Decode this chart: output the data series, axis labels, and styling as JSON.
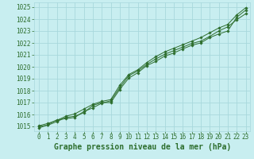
{
  "xlabel": "Graphe pression niveau de la mer (hPa)",
  "bg_color": "#c8eef0",
  "grid_color": "#a8d8dc",
  "line_color": "#2d6e2d",
  "x_ticks": [
    0,
    1,
    2,
    3,
    4,
    5,
    6,
    7,
    8,
    9,
    10,
    11,
    12,
    13,
    14,
    15,
    16,
    17,
    18,
    19,
    20,
    21,
    22,
    23
  ],
  "y_ticks": [
    1015,
    1016,
    1017,
    1018,
    1019,
    1020,
    1021,
    1022,
    1023,
    1024,
    1025
  ],
  "ylim": [
    1014.6,
    1025.4
  ],
  "xlim": [
    -0.5,
    23.5
  ],
  "series1": [
    1015.0,
    1015.1,
    1015.4,
    1015.75,
    1015.85,
    1016.15,
    1016.75,
    1017.0,
    1017.0,
    1018.1,
    1019.05,
    1019.5,
    1020.1,
    1020.45,
    1020.9,
    1021.15,
    1021.5,
    1021.8,
    1022.0,
    1022.45,
    1022.75,
    1023.0,
    1024.15,
    1024.75
  ],
  "series2": [
    1014.85,
    1015.15,
    1015.55,
    1015.65,
    1015.75,
    1016.25,
    1016.55,
    1016.95,
    1017.15,
    1018.25,
    1019.25,
    1019.65,
    1020.2,
    1020.65,
    1021.05,
    1021.35,
    1021.65,
    1021.95,
    1022.15,
    1022.55,
    1023.0,
    1023.35,
    1023.95,
    1024.45
  ],
  "series3": [
    1015.05,
    1015.25,
    1015.5,
    1015.85,
    1016.05,
    1016.45,
    1016.85,
    1017.1,
    1017.25,
    1018.45,
    1019.35,
    1019.75,
    1020.35,
    1020.85,
    1021.25,
    1021.55,
    1021.85,
    1022.15,
    1022.45,
    1022.85,
    1023.25,
    1023.55,
    1024.35,
    1024.95
  ],
  "tick_fontsize": 5.5,
  "xlabel_fontsize": 7.0
}
